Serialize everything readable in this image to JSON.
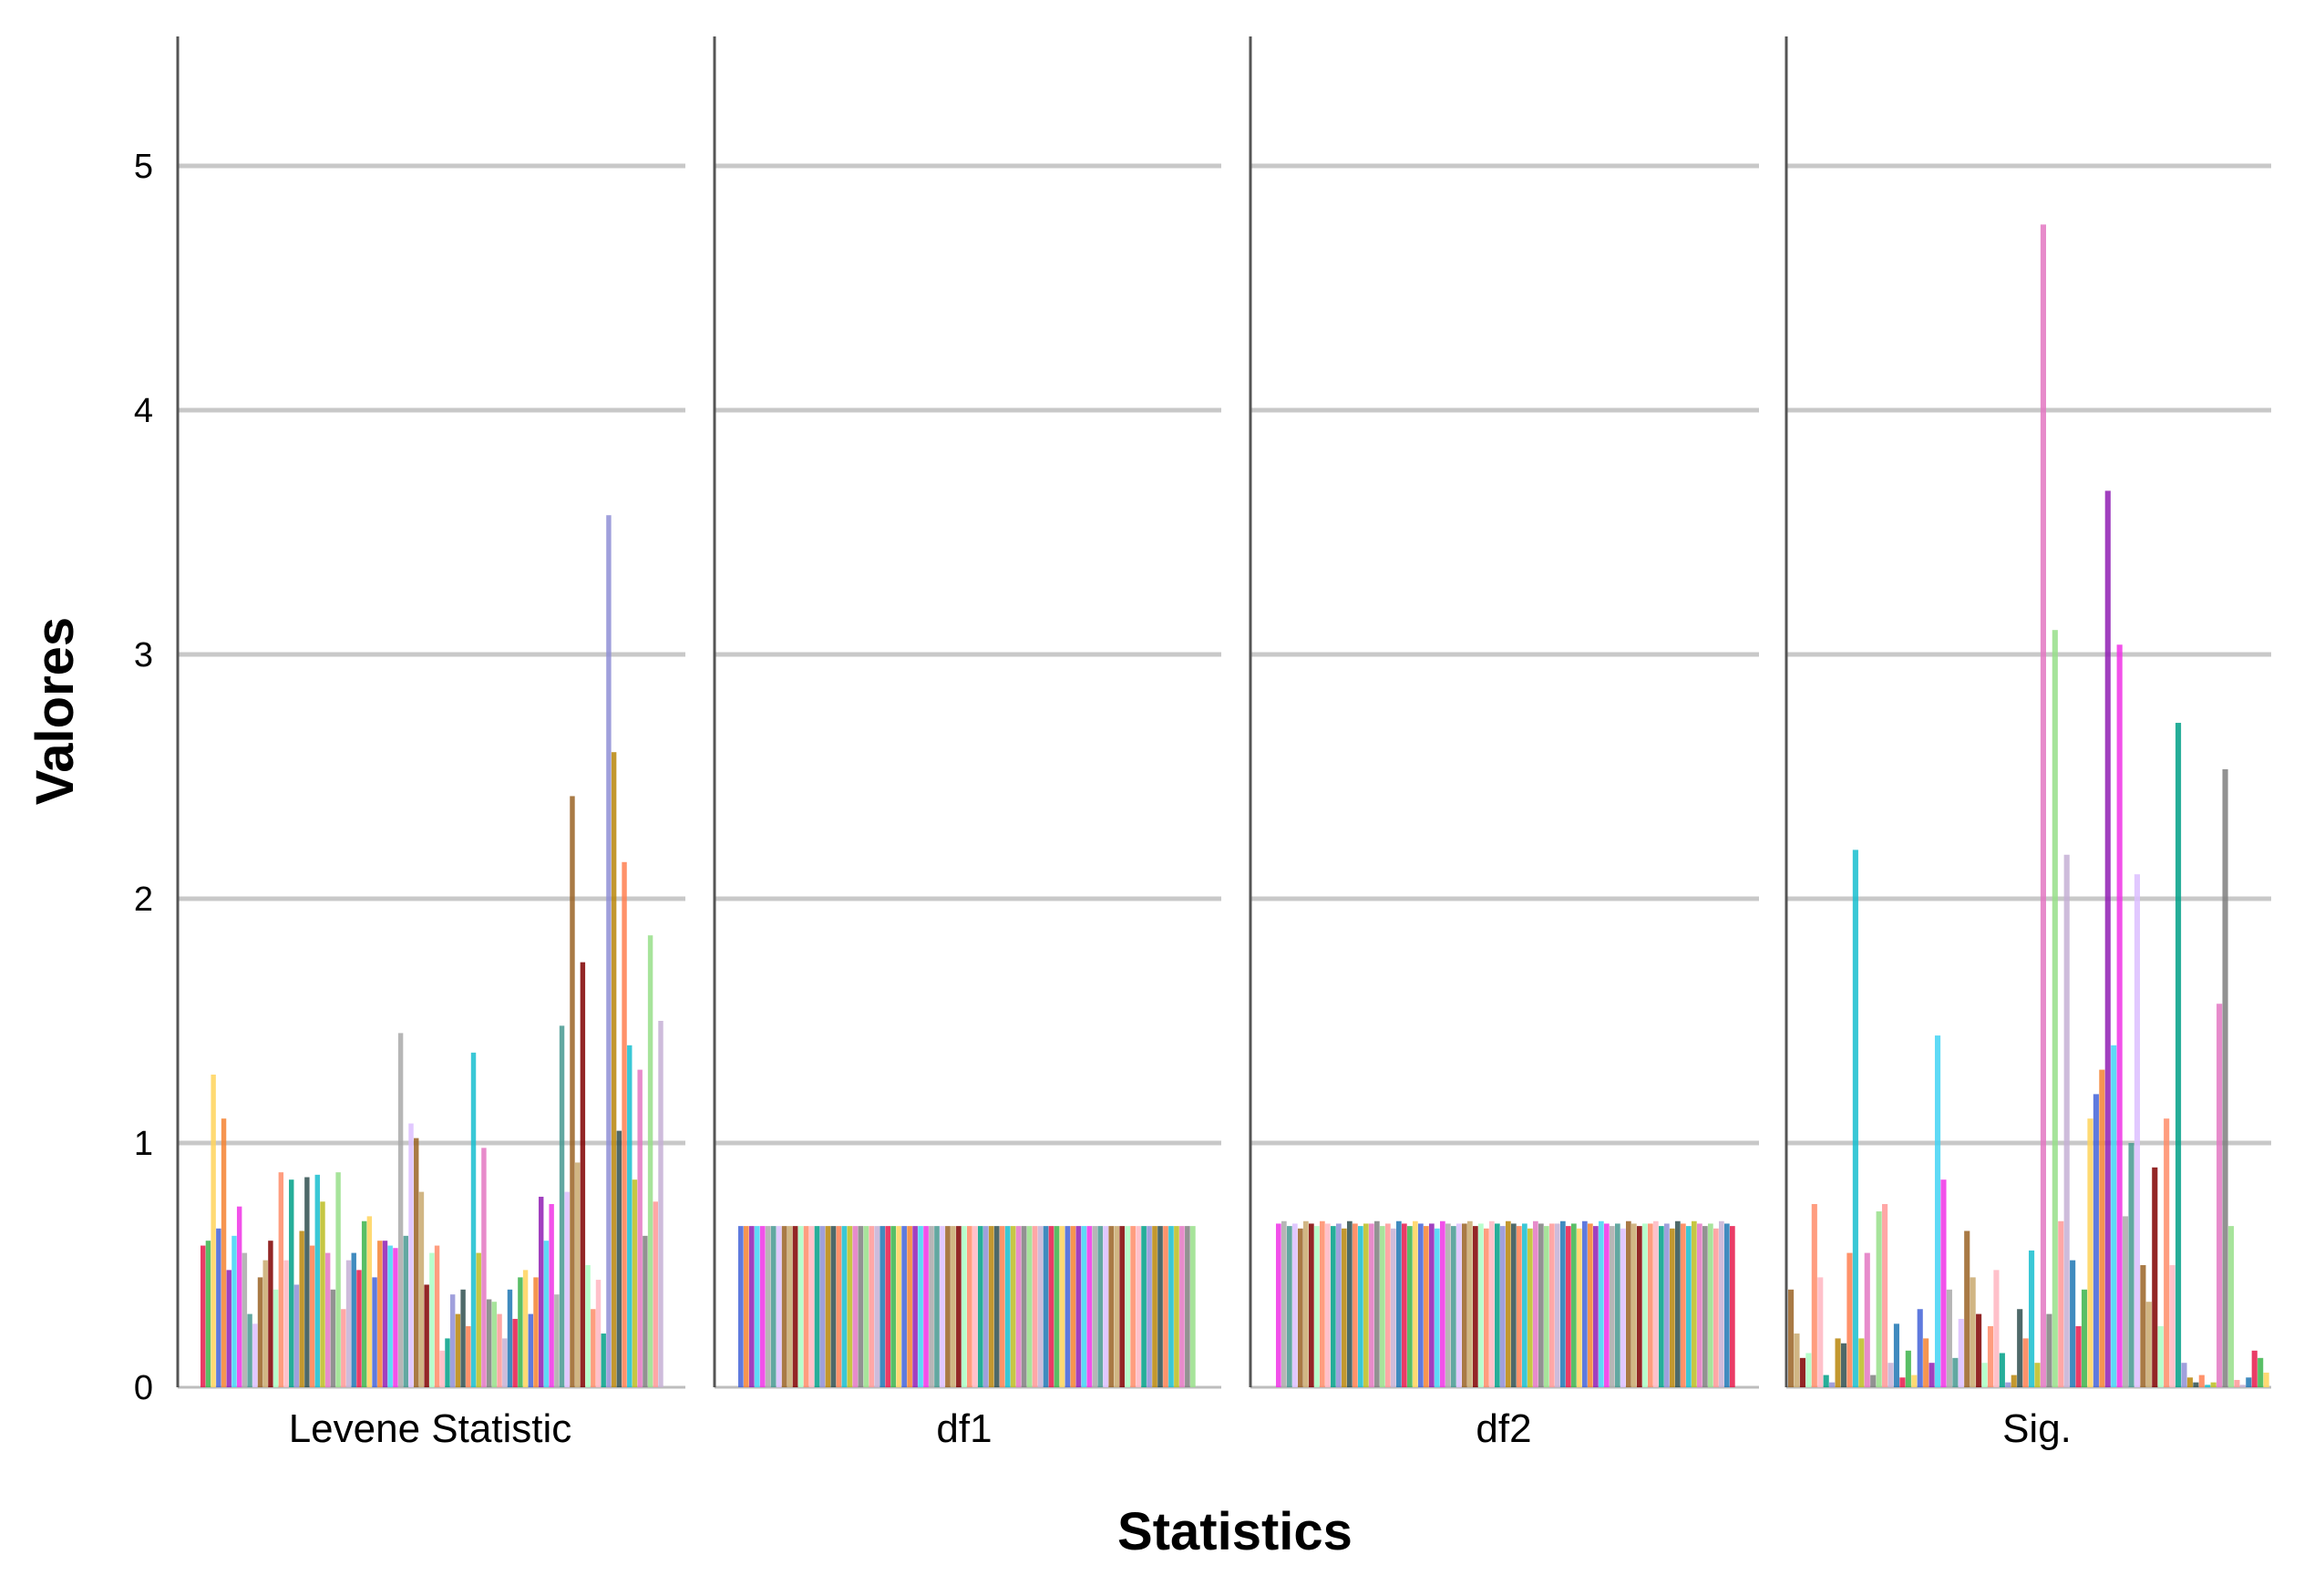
{
  "chart_data": {
    "type": "bar",
    "title": "",
    "xlabel": "Statistics",
    "ylabel": "Valores",
    "ylim": [
      0,
      5.5
    ],
    "yticks": [
      "0",
      "1",
      "2",
      "3",
      "4",
      "5"
    ],
    "grid": true,
    "panels": [
      {
        "name": "Levene Statistic",
        "values": [
          0.58,
          0.6,
          1.28,
          0.65,
          1.1,
          0.48,
          0.62,
          0.74,
          0.55,
          0.3,
          0.26,
          0.45,
          0.52,
          0.6,
          0.4,
          0.88,
          0.52,
          0.85,
          0.42,
          0.64,
          0.86,
          0.58,
          0.87,
          0.76,
          0.55,
          0.4,
          0.88,
          0.32,
          0.52,
          0.55,
          0.48,
          0.68,
          0.7,
          0.45,
          0.6,
          0.6,
          0.58,
          0.57,
          1.45,
          0.62,
          1.08,
          1.02,
          0.8,
          0.42,
          0.55,
          0.58,
          0.15,
          0.2,
          0.38,
          0.3,
          0.4,
          0.25,
          1.37,
          0.55,
          0.98,
          0.36,
          0.35,
          0.3,
          0.2,
          0.4,
          0.28,
          0.45,
          0.48,
          0.3,
          0.45,
          0.78,
          0.6,
          0.75,
          0.38,
          1.48,
          0.8,
          2.42,
          0.92,
          1.74,
          0.5,
          0.32,
          0.44,
          0.22,
          3.57,
          2.6,
          1.05,
          2.15,
          1.4,
          0.85,
          1.3,
          0.62,
          1.85,
          0.76,
          1.5
        ],
        "color_start": 0
      },
      {
        "name": "df1",
        "values": [
          0.66
        ],
        "count": 84,
        "color_start": 3
      },
      {
        "name": "df2",
        "values": [
          0.67,
          0.68,
          0.66,
          0.67,
          0.65,
          0.68,
          0.67,
          0.66,
          0.68,
          0.67,
          0.66,
          0.67,
          0.65,
          0.68,
          0.67,
          0.66,
          0.67
        ],
        "count": 84,
        "color_start": 7
      },
      {
        "name": "Sig.",
        "values": [
          0.4,
          0.22,
          0.12,
          0.14,
          0.75,
          0.45,
          0.05,
          0.02,
          0.2,
          0.18,
          0.55,
          2.2,
          0.2,
          0.55,
          0.05,
          0.72,
          0.75,
          0.1,
          0.26,
          0.04,
          0.15,
          0.05,
          0.32,
          0.2,
          0.1,
          1.44,
          0.85,
          0.4,
          0.12,
          0.28,
          0.64,
          0.45,
          0.3,
          0.1,
          0.25,
          0.48,
          0.14,
          0.02,
          0.05,
          0.32,
          0.2,
          0.56,
          0.1,
          4.76,
          0.3,
          3.1,
          0.68,
          2.18,
          0.52,
          0.25,
          0.4,
          1.1,
          1.2,
          1.3,
          3.67,
          1.4,
          3.04,
          0.7,
          1.0,
          2.1,
          0.5,
          0.35,
          0.9,
          0.25,
          1.1,
          0.5,
          2.72,
          0.1,
          0.04,
          0.02,
          0.05,
          0.01,
          0.02,
          1.57,
          2.53,
          0.66,
          0.03,
          0.01,
          0.04,
          0.15,
          0.12,
          0.06
        ],
        "color_start": 11
      }
    ],
    "palette": [
      "#e6194b",
      "#3cb44b",
      "#ffd35a",
      "#4363d8",
      "#f58231",
      "#911eb4",
      "#42d4f4",
      "#f032e6",
      "#a9a9a9",
      "#469990",
      "#dcbeff",
      "#9a6324",
      "#c9a96e",
      "#800000",
      "#aaffc3",
      "#ff8c69",
      "#ffb6c1",
      "#00a087",
      "#8f8fd6",
      "#b8860b",
      "#2f4f4f",
      "#ff7f50",
      "#17becf",
      "#bcbd22",
      "#e377c2",
      "#7f7f7f",
      "#98df8a",
      "#ff9896",
      "#c5b0d5",
      "#1f77b4"
    ]
  }
}
